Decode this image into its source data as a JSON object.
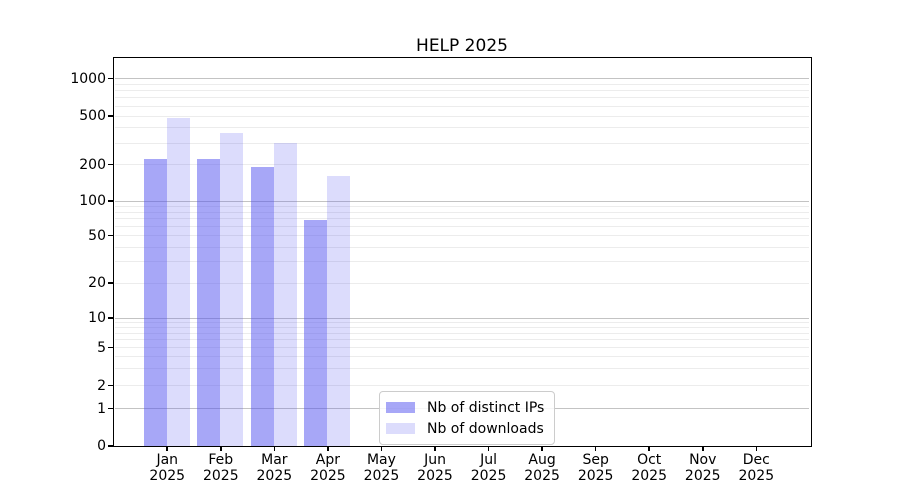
{
  "chart_data": {
    "type": "bar",
    "title": "HELP 2025",
    "y_scale": "symlog (linear 0-1, log above 1)",
    "y_ticks": [
      0,
      1,
      2,
      5,
      10,
      20,
      50,
      100,
      200,
      500,
      1000
    ],
    "y_range": [
      0,
      1500
    ],
    "grid": "horizontal, major and minor lines",
    "legend_position": "lower center-left, inside plot",
    "categories": [
      "Jan",
      "Feb",
      "Mar",
      "Apr",
      "May",
      "Jun",
      "Jul",
      "Aug",
      "Sep",
      "Oct",
      "Nov",
      "Dec"
    ],
    "year_label": "2025",
    "series": [
      {
        "name": "Nb of distinct IPs",
        "fill": "rgba(80,80,240,0.5)",
        "values": [
          220,
          220,
          190,
          68,
          0,
          0,
          0,
          0,
          0,
          0,
          0,
          0
        ]
      },
      {
        "name": "Nb of downloads",
        "fill": "rgba(80,80,240,0.2)",
        "values": [
          480,
          365,
          300,
          160,
          0,
          0,
          0,
          0,
          0,
          0,
          0,
          0
        ]
      }
    ]
  }
}
